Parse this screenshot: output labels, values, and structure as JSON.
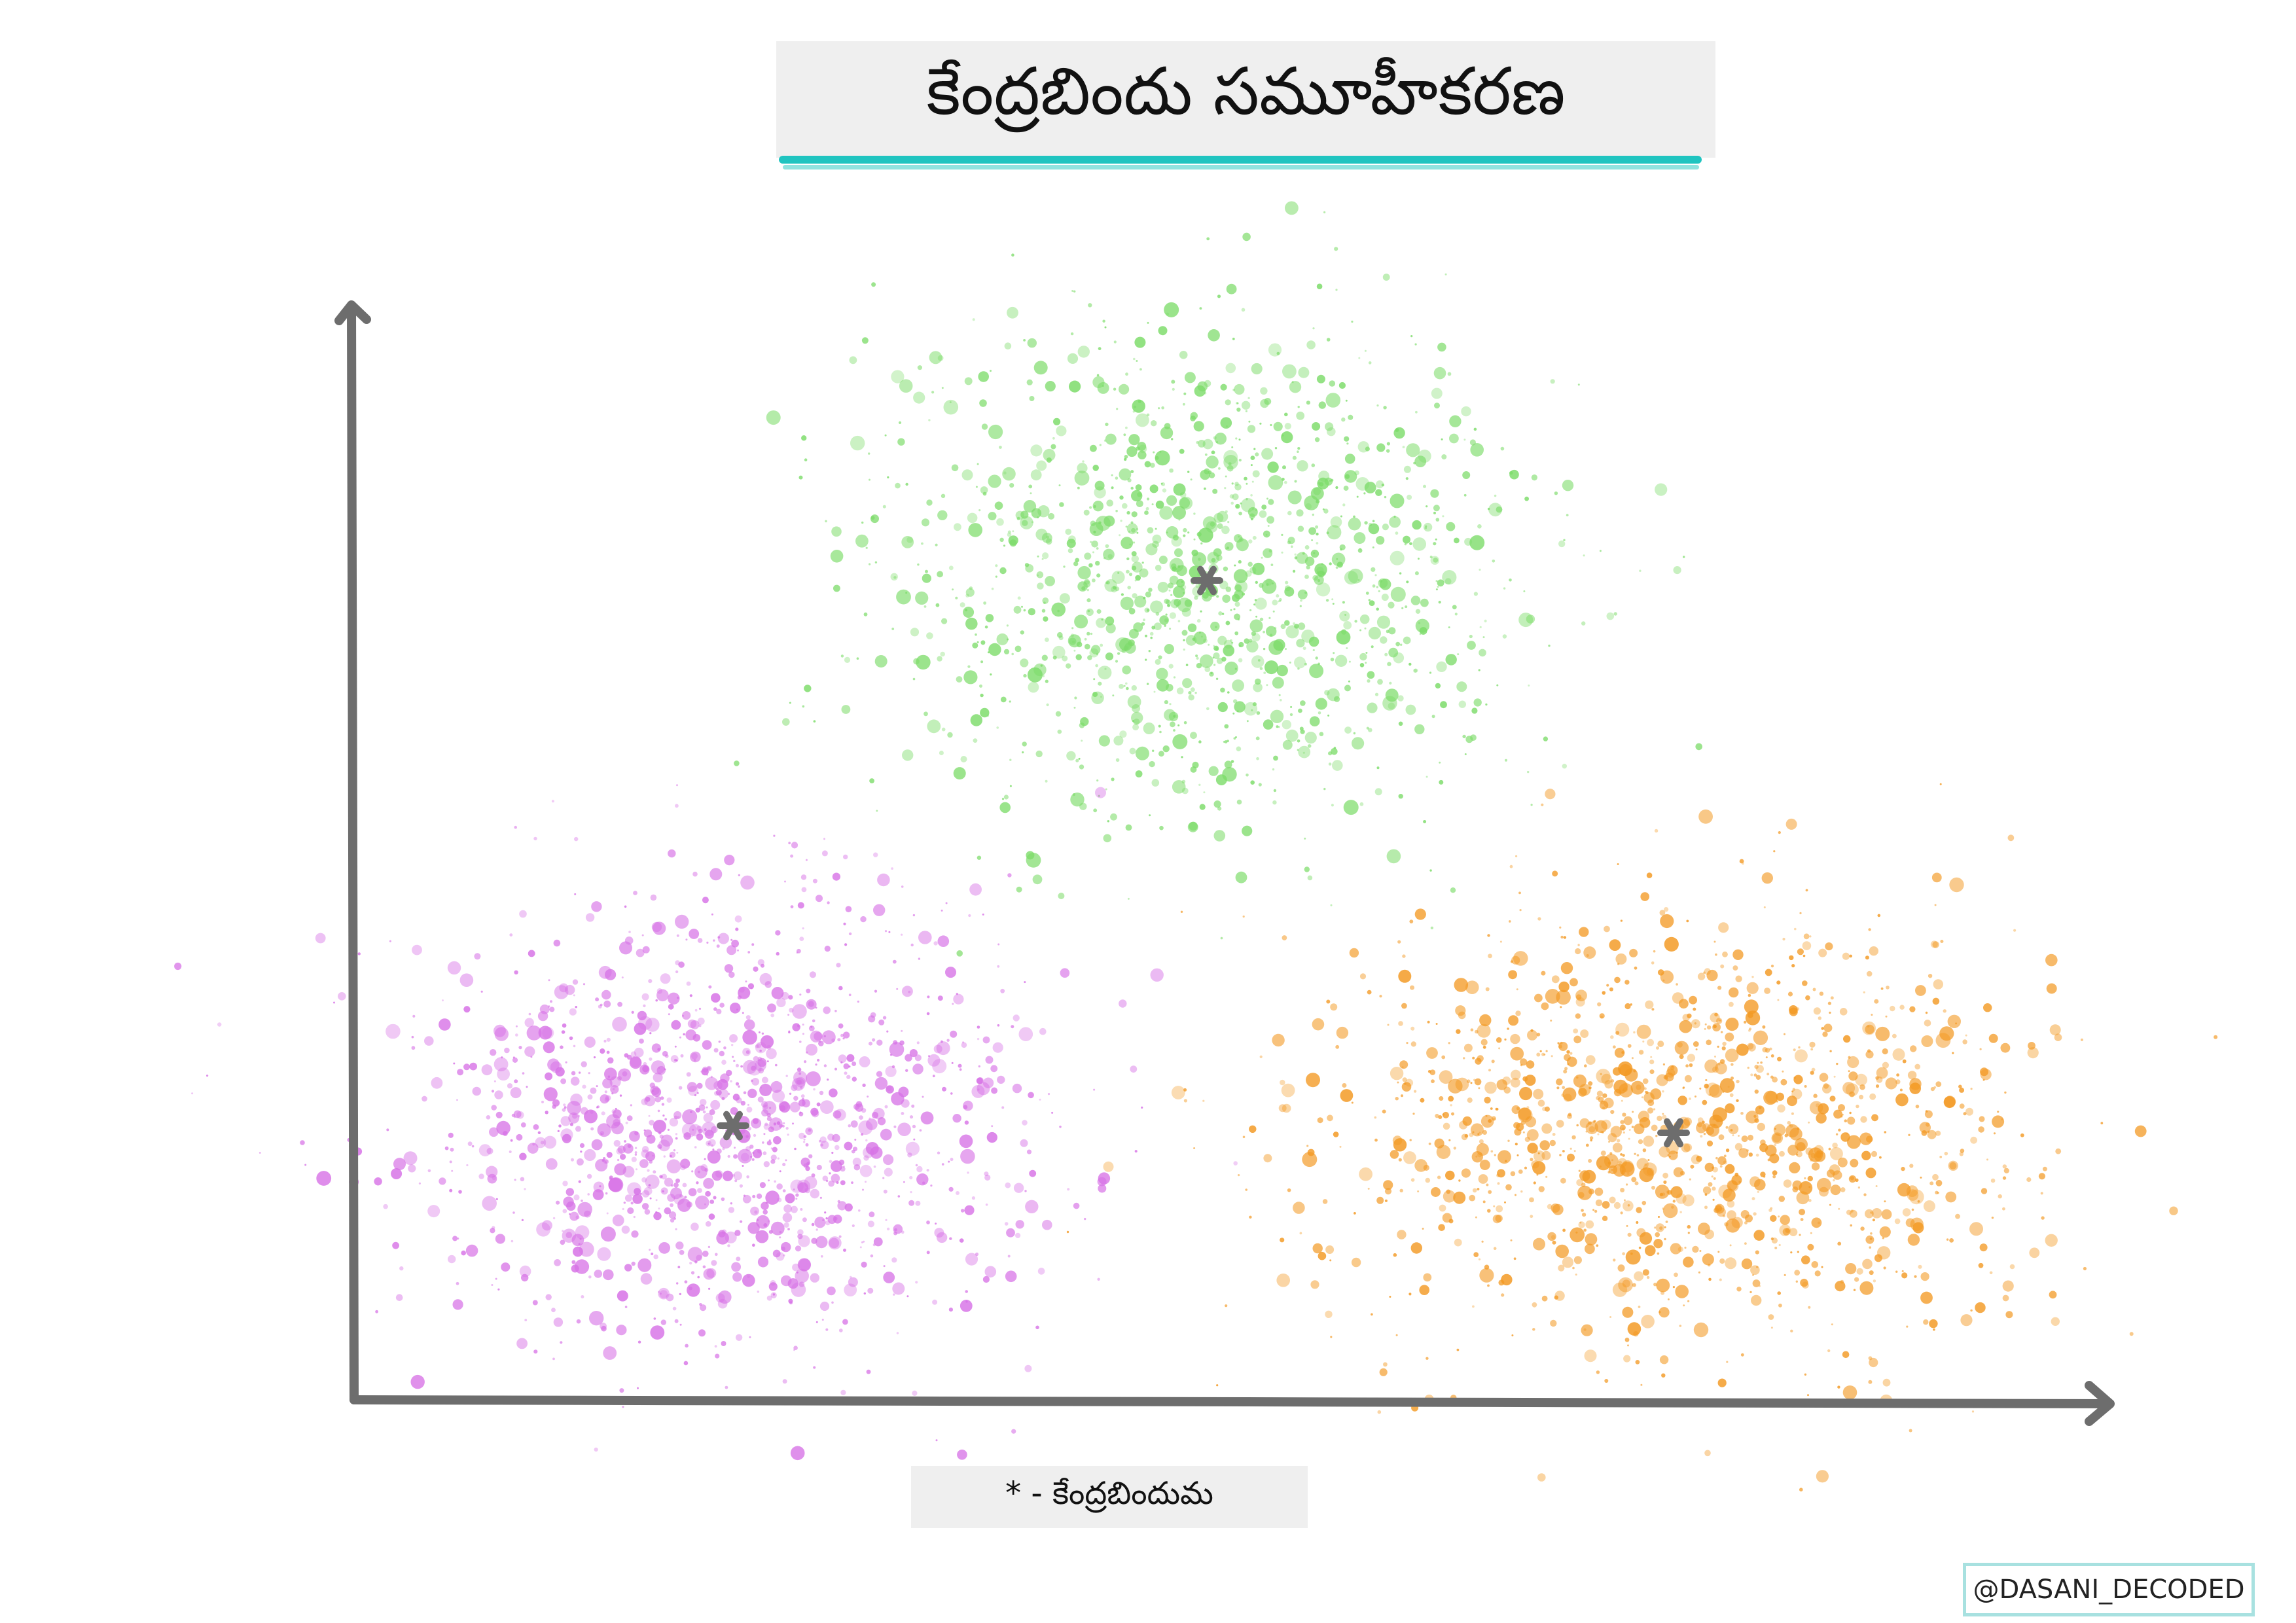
{
  "title": "కేంద్రబిందు సమూహీకరణ",
  "legend": "* - కేంద్రబిందుమ",
  "watermark": "@DASANI_DECODED"
}
